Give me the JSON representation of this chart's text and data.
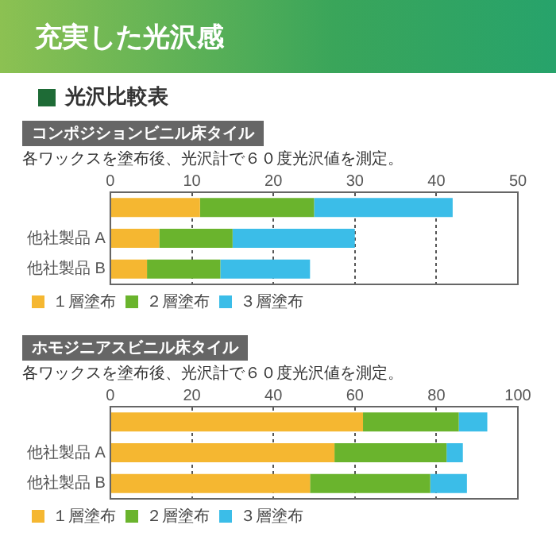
{
  "chart_data": [
    {
      "type": "bar",
      "orientation": "horizontal",
      "stacked": true,
      "title": "コンポジションビニル床タイル",
      "subtitle": "各ワックスを塗布後、光沢計で６０度光沢値を測定。",
      "annotations": [
        "充実した光沢感",
        "光沢比較表"
      ],
      "categories": [
        null,
        "他社製品 A",
        "他社製品 B"
      ],
      "series": [
        {
          "name": "１層塗布",
          "color": "#f5b731",
          "values": [
            11,
            6,
            4.5
          ]
        },
        {
          "name": "２層塗布",
          "color": "#6ab42d",
          "values": [
            14,
            9,
            9
          ]
        },
        {
          "name": "３層塗布",
          "color": "#3bbde8",
          "values": [
            17,
            15,
            11
          ]
        }
      ],
      "xlim": [
        0,
        50
      ],
      "xticks": [
        0,
        10,
        20,
        30,
        40,
        50
      ],
      "grid": "x",
      "legend": "bottom"
    },
    {
      "type": "bar",
      "orientation": "horizontal",
      "stacked": true,
      "title": "ホモジニアスビニル床タイル",
      "subtitle": "各ワックスを塗布後、光沢計で６０度光沢値を測定。",
      "categories": [
        null,
        "他社製品 A",
        "他社製品 B"
      ],
      "series": [
        {
          "name": "１層塗布",
          "color": "#f5b731",
          "values": [
            62,
            55,
            49
          ]
        },
        {
          "name": "２層塗布",
          "color": "#6ab42d",
          "values": [
            23.5,
            27.5,
            29.5
          ]
        },
        {
          "name": "３層塗布",
          "color": "#3bbde8",
          "values": [
            7,
            4,
            9
          ]
        }
      ],
      "xlim": [
        0,
        100
      ],
      "xticks": [
        0,
        20,
        40,
        60,
        80,
        100
      ],
      "grid": "x",
      "legend": "bottom"
    }
  ]
}
